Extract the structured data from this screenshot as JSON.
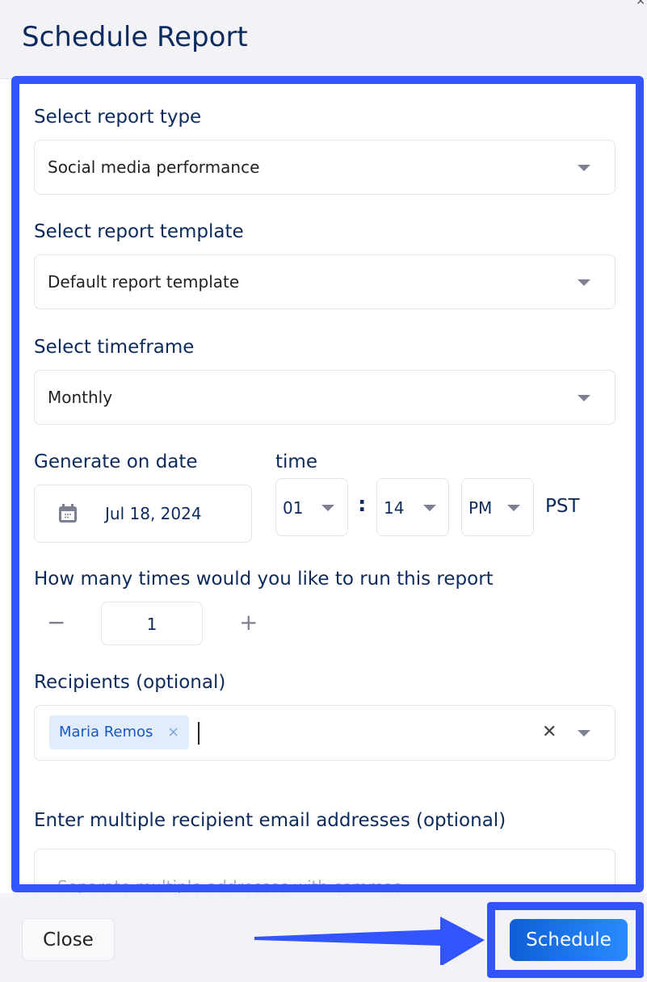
{
  "dialog": {
    "title": "Schedule Report",
    "close_icon": "x-icon"
  },
  "report_type": {
    "label": "Select report type",
    "value": "Social media performance"
  },
  "report_template": {
    "label": "Select report template",
    "value": "Default report template"
  },
  "timeframe": {
    "label": "Select timeframe",
    "value": "Monthly"
  },
  "date": {
    "label": "Generate on date",
    "value": "Jul 18, 2024",
    "icon": "calendar-icon"
  },
  "time": {
    "label": "time",
    "hour": "01",
    "separator": ":",
    "minute": "14",
    "ampm": "PM",
    "timezone": "PST"
  },
  "runs": {
    "label": "How many times would you like to run this report",
    "value": "1",
    "minus": "−",
    "plus": "+"
  },
  "recipients": {
    "label": "Recipients (optional)",
    "chips": [
      "Maria Remos"
    ],
    "chip_remove": "×",
    "clear": "✕"
  },
  "emails": {
    "label": "Enter multiple recipient email addresses (optional)",
    "placeholder": "Separate multiple addresses with commas."
  },
  "footer": {
    "close_label": "Close",
    "schedule_label": "Schedule"
  },
  "colors": {
    "annotation": "#3355ff",
    "primary": "#1469e0",
    "text": "#0d2a5c"
  }
}
